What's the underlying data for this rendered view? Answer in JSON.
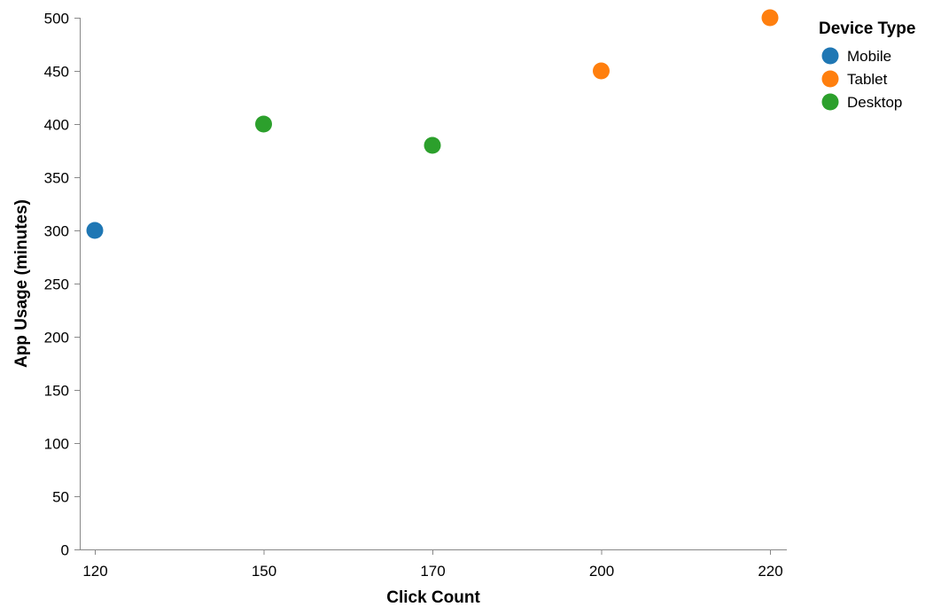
{
  "chart_data": {
    "type": "scatter",
    "xlabel": "Click Count",
    "ylabel": "App Usage (minutes)",
    "x_categories": [
      "120",
      "150",
      "170",
      "200",
      "220"
    ],
    "ylim": [
      0,
      500
    ],
    "y_ticks": [
      0,
      50,
      100,
      150,
      200,
      250,
      300,
      350,
      400,
      450,
      500
    ],
    "grid": false,
    "legend": {
      "title": "Device Type",
      "placement": "top-right",
      "items": [
        {
          "label": "Mobile",
          "color": "#1f77b4"
        },
        {
          "label": "Tablet",
          "color": "#ff7f0e"
        },
        {
          "label": "Desktop",
          "color": "#2ca02c"
        }
      ]
    },
    "points": [
      {
        "x": "120",
        "y": 300,
        "device": "Mobile"
      },
      {
        "x": "150",
        "y": 400,
        "device": "Desktop"
      },
      {
        "x": "170",
        "y": 380,
        "device": "Desktop"
      },
      {
        "x": "200",
        "y": 450,
        "device": "Tablet"
      },
      {
        "x": "220",
        "y": 500,
        "device": "Tablet"
      }
    ]
  }
}
